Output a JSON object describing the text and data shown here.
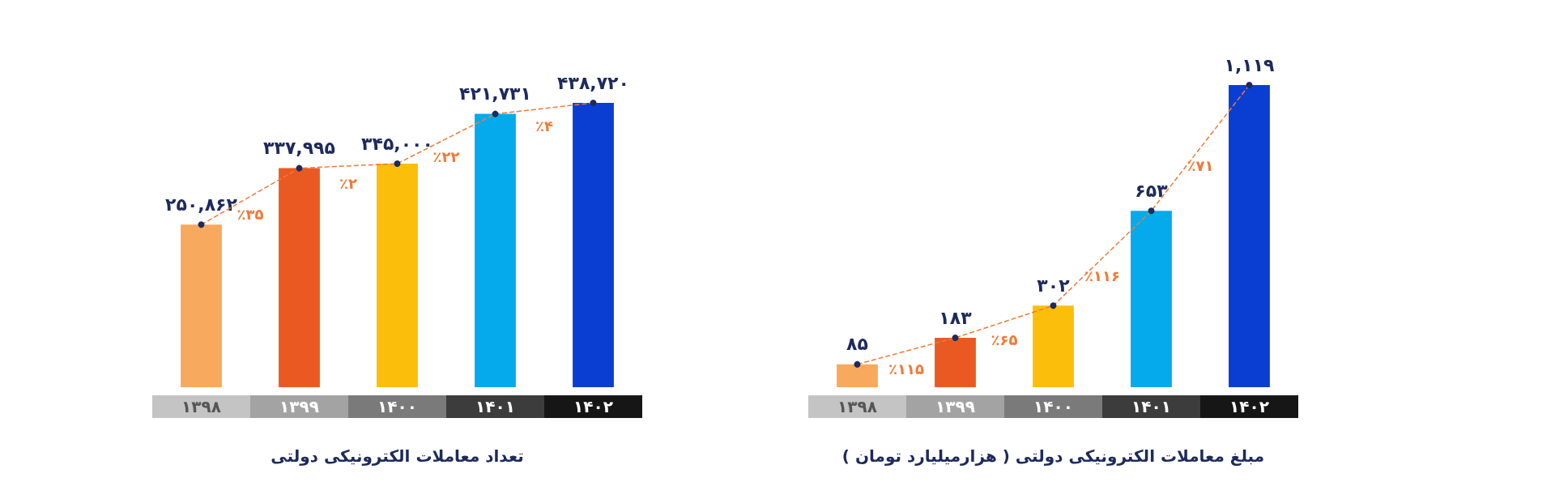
{
  "chart_data": [
    {
      "type": "bar",
      "xlabel": "تعداد معاملات الکترونیکی دولتی",
      "categories": [
        "۱۳۹۸",
        "۱۳۹۹",
        "۱۴۰۰",
        "۱۴۰۱",
        "۱۴۰۲"
      ],
      "tick_labels": "x",
      "series": [
        {
          "colors": [
            "#f7a95e",
            "#e95a23",
            "#fbbe0b",
            "#05aaec",
            "#0a3ed2"
          ],
          "values": [
            250862,
            337995,
            345000,
            421731,
            438720
          ],
          "value_labels": [
            "۲۵۰,۸۶۲",
            "۳۳۷,۹۹۵",
            "۳۴۵,۰۰۰",
            "۴۲۱,۷۳۱",
            "۴۳۸,۷۲۰"
          ]
        },
        {
          "type": "line",
          "color": "#f07a35",
          "line_style": "dashed",
          "marker": "circle",
          "values": [
            250862,
            337995,
            345000,
            421731,
            438720
          ]
        }
      ],
      "annotations": [
        "٪۳۵",
        "٪۲",
        "٪۲۲",
        "٪۴"
      ]
    },
    {
      "type": "bar",
      "xlabel": "مبلغ معاملات الکترونیکی دولتی ( هزارمیلیارد تومان )",
      "categories": [
        "۱۳۹۸",
        "۱۳۹۹",
        "۱۴۰۰",
        "۱۴۰۱",
        "۱۴۰۲"
      ],
      "tick_labels": "x",
      "series": [
        {
          "colors": [
            "#f7a95e",
            "#e95a23",
            "#fbbe0b",
            "#05aaec",
            "#0a3ed2"
          ],
          "values": [
            85,
            183,
            302,
            653,
            1119
          ],
          "value_labels": [
            "۸۵",
            "۱۸۳",
            "۳۰۲",
            "۶۵۳",
            "۱,۱۱۹"
          ]
        },
        {
          "type": "line",
          "color": "#f07a35",
          "line_style": "dashed",
          "marker": "circle",
          "values": [
            85,
            183,
            302,
            653,
            1119
          ]
        }
      ],
      "annotations": [
        "٪۱۱۵",
        "٪۶۵",
        "٪۱۱۶",
        "٪۷۱"
      ]
    }
  ]
}
